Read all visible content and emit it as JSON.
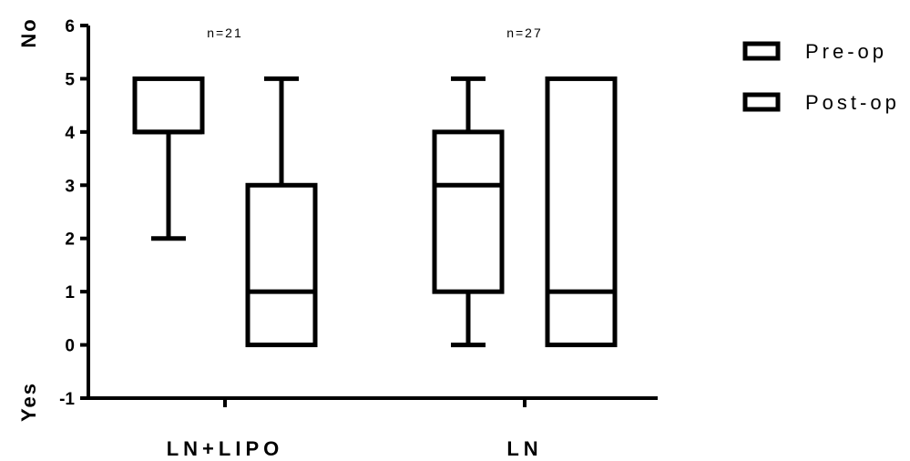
{
  "chart_data": {
    "type": "boxplot",
    "title": "",
    "xlabel": "",
    "ylabel": "",
    "ylim": [
      -1,
      6
    ],
    "yticks": [
      -1,
      0,
      1,
      2,
      3,
      4,
      5,
      6
    ],
    "y_end_labels": {
      "top": "No",
      "bottom": "Yes"
    },
    "grid": false,
    "legend_position": "top-right",
    "series": [
      {
        "name": "Pre-op",
        "fill": "#ffffff",
        "stroke": "#000000"
      },
      {
        "name": "Post-op",
        "fill": "#ffffff",
        "stroke": "#000000"
      }
    ],
    "groups": [
      {
        "label": "LN+LIPO",
        "annotation": "n=21",
        "boxes": [
          {
            "series": "Pre-op",
            "min": 2,
            "q1": 4,
            "median": 4,
            "q3": 5,
            "max": 5
          },
          {
            "series": "Post-op",
            "min": 0,
            "q1": 0,
            "median": 1,
            "q3": 3,
            "max": 5
          }
        ]
      },
      {
        "label": "LN",
        "annotation": "n=27",
        "boxes": [
          {
            "series": "Pre-op",
            "min": 0,
            "q1": 1,
            "median": 3,
            "q3": 4,
            "max": 5
          },
          {
            "series": "Post-op",
            "min": 0,
            "q1": 0,
            "median": 1,
            "q3": 5,
            "max": 5
          }
        ]
      }
    ]
  }
}
